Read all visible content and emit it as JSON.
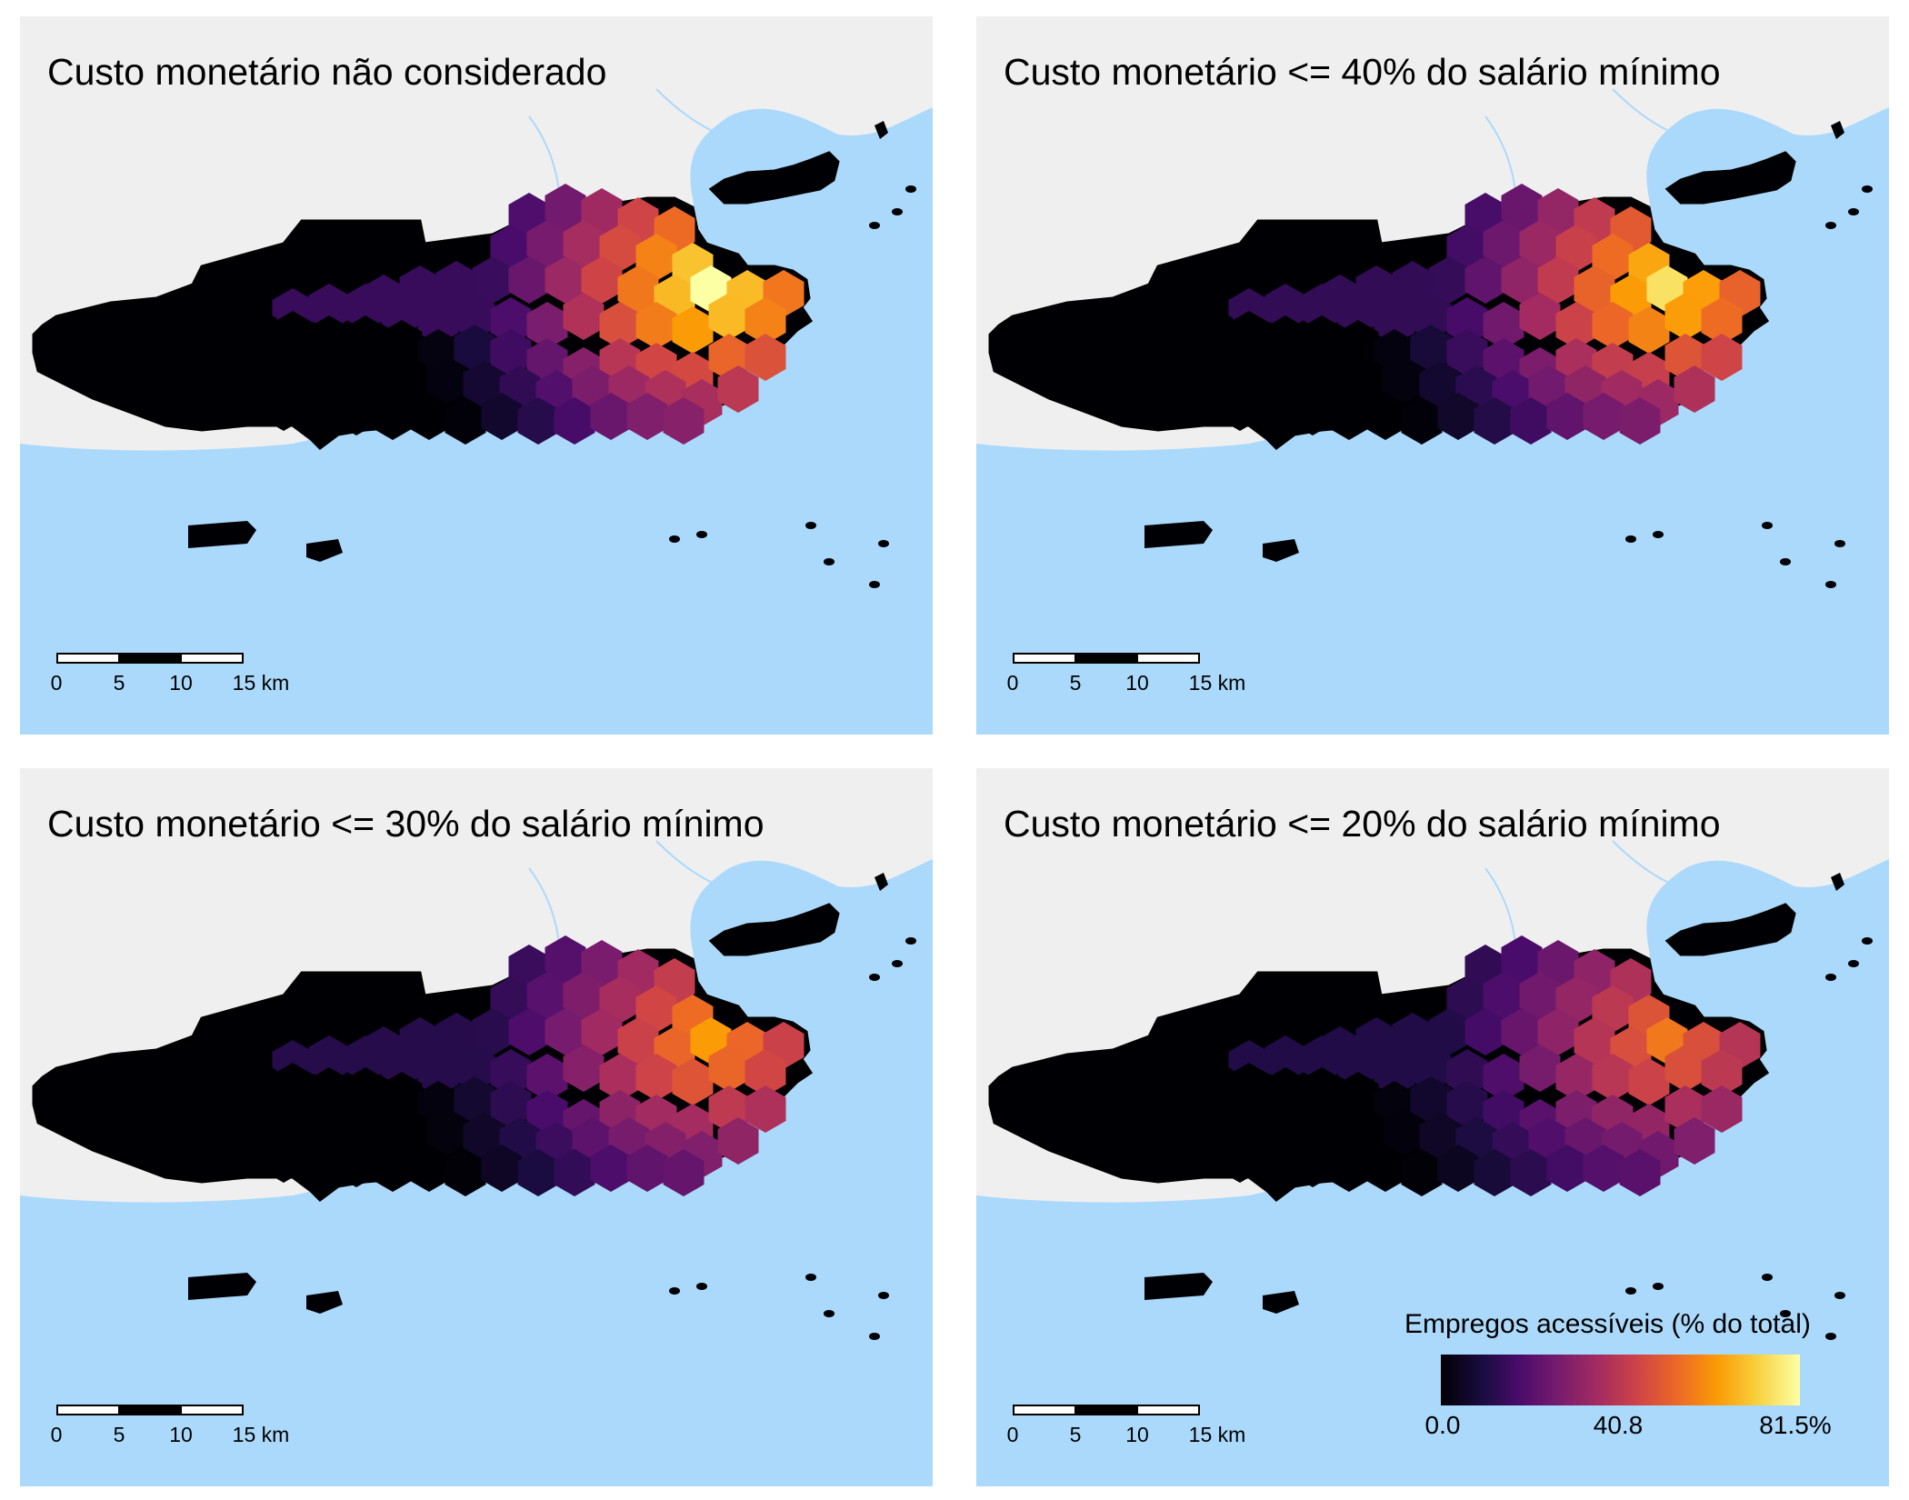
{
  "panels": [
    {
      "title": "Custo monetário não considerado",
      "accessibility_scale": 1.0
    },
    {
      "title": "Custo monetário <= 40% do salário mínimo",
      "accessibility_scale": 0.93
    },
    {
      "title": "Custo monetário <= 30% do salário mínimo",
      "accessibility_scale": 0.78
    },
    {
      "title": "Custo monetário <= 20% do salário mínimo",
      "accessibility_scale": 0.7
    }
  ],
  "scalebar": {
    "ticks": [
      "0",
      "5",
      "10",
      "15 km"
    ]
  },
  "legend": {
    "title": "Empregos acessíveis (% do total)",
    "ticks": [
      "0.0",
      "40.8",
      "81.5%"
    ],
    "palette": "inferno"
  },
  "colors": {
    "water": "#abd9fb",
    "land": "#f0efef",
    "city": "#000004"
  }
}
